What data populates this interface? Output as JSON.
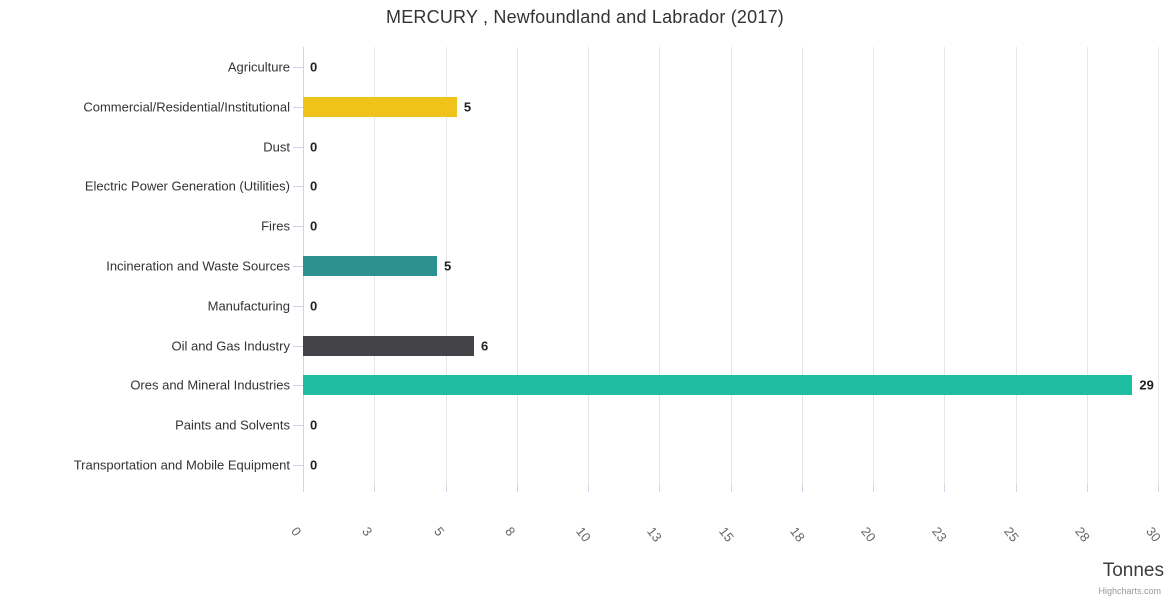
{
  "chart_data": {
    "type": "bar",
    "orientation": "horizontal",
    "title": "MERCURY , Newfoundland and Labrador (2017)",
    "categories": [
      "Agriculture",
      "Commercial/Residential/Institutional",
      "Dust",
      "Electric Power Generation (Utilities)",
      "Fires",
      "Incineration and Waste Sources",
      "Manufacturing",
      "Oil and Gas Industry",
      "Ores and Mineral Industries",
      "Paints and Solvents",
      "Transportation and Mobile Equipment"
    ],
    "values": [
      0,
      5,
      0,
      0,
      0,
      5,
      0,
      6,
      29,
      0,
      0
    ],
    "values_precise": [
      0,
      5.4,
      0,
      0,
      0,
      4.7,
      0,
      6.0,
      29.1,
      0,
      0
    ],
    "data_labels": [
      "0",
      "5",
      "0",
      "0",
      "0",
      "5",
      "0",
      "6",
      "29",
      "0",
      "0"
    ],
    "bar_colors": [
      null,
      "#efc319",
      null,
      null,
      null,
      "#2d9190",
      null,
      "#434348",
      "#1fbea2",
      null,
      null
    ],
    "xlabel": "Tonnes",
    "ylabel": "",
    "xlim": [
      0,
      30
    ],
    "x_tick_labels": [
      "0",
      "3",
      "5",
      "8",
      "10",
      "13",
      "15",
      "18",
      "20",
      "23",
      "25",
      "28",
      "30"
    ],
    "x_tick_positions": [
      0,
      2.5,
      5,
      7.5,
      10,
      12.5,
      15,
      17.5,
      20,
      22.5,
      25,
      27.5,
      30
    ],
    "grid": true,
    "legend": false
  },
  "credits_label": "Highcharts.com",
  "colors": {
    "grid": "#e6e6e6",
    "axis_line": "#ccd6eb",
    "title_text": "#333333",
    "category_text": "#333333",
    "tick_text": "#666666",
    "data_label_text": "#1e2026",
    "credits_text": "#999999",
    "background": "#ffffff"
  }
}
